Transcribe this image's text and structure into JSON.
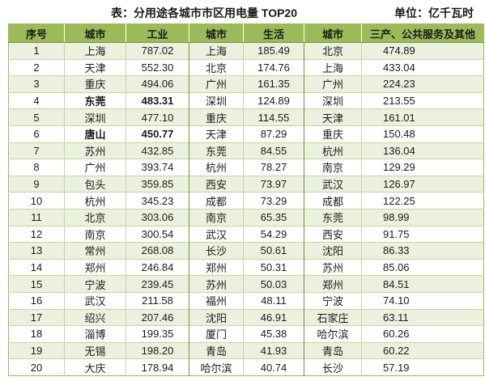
{
  "chart_data": {
    "type": "table",
    "title": "表：分用途各城市市区用电量 TOP20",
    "unit": "单位：亿千瓦时",
    "header": {
      "rank": "序号",
      "industry_city": "城市",
      "industry": "工业",
      "residential_city": "城市",
      "residential": "生活",
      "tertiary_city": "城市",
      "tertiary": "三产、公共服务及其他"
    },
    "rows": [
      {
        "rank": 1,
        "industry": {
          "city": "上海",
          "value": 787.02
        },
        "residential": {
          "city": "上海",
          "value": 185.49
        },
        "tertiary": {
          "city": "北京",
          "value": 474.89
        }
      },
      {
        "rank": 2,
        "industry": {
          "city": "天津",
          "value": 552.3
        },
        "residential": {
          "city": "北京",
          "value": 174.76
        },
        "tertiary": {
          "city": "上海",
          "value": 433.04
        }
      },
      {
        "rank": 3,
        "industry": {
          "city": "重庆",
          "value": 494.06
        },
        "residential": {
          "city": "广州",
          "value": 161.35
        },
        "tertiary": {
          "city": "广州",
          "value": 224.23
        }
      },
      {
        "rank": 4,
        "industry": {
          "city": "东莞",
          "value": 483.31,
          "emphasized": true
        },
        "residential": {
          "city": "深圳",
          "value": 124.89
        },
        "tertiary": {
          "city": "深圳",
          "value": 213.55
        }
      },
      {
        "rank": 5,
        "industry": {
          "city": "深圳",
          "value": 477.1
        },
        "residential": {
          "city": "重庆",
          "value": 114.55
        },
        "tertiary": {
          "city": "天津",
          "value": 161.01
        }
      },
      {
        "rank": 6,
        "industry": {
          "city": "唐山",
          "value": 450.77,
          "emphasized": true
        },
        "residential": {
          "city": "天津",
          "value": 87.29
        },
        "tertiary": {
          "city": "重庆",
          "value": 150.48
        }
      },
      {
        "rank": 7,
        "industry": {
          "city": "苏州",
          "value": 432.85
        },
        "residential": {
          "city": "东莞",
          "value": 84.55
        },
        "tertiary": {
          "city": "杭州",
          "value": 136.04
        }
      },
      {
        "rank": 8,
        "industry": {
          "city": "广州",
          "value": 393.74
        },
        "residential": {
          "city": "杭州",
          "value": 78.27
        },
        "tertiary": {
          "city": "南京",
          "value": 129.29
        }
      },
      {
        "rank": 9,
        "industry": {
          "city": "包头",
          "value": 359.85
        },
        "residential": {
          "city": "西安",
          "value": 73.97
        },
        "tertiary": {
          "city": "武汉",
          "value": 126.97
        }
      },
      {
        "rank": 10,
        "industry": {
          "city": "杭州",
          "value": 345.23
        },
        "residential": {
          "city": "成都",
          "value": 73.29
        },
        "tertiary": {
          "city": "成都",
          "value": 122.25
        }
      },
      {
        "rank": 11,
        "industry": {
          "city": "北京",
          "value": 303.06
        },
        "residential": {
          "city": "南京",
          "value": 65.35
        },
        "tertiary": {
          "city": "东莞",
          "value": 98.99
        }
      },
      {
        "rank": 12,
        "industry": {
          "city": "南京",
          "value": 300.54
        },
        "residential": {
          "city": "武汉",
          "value": 54.29
        },
        "tertiary": {
          "city": "西安",
          "value": 91.75
        }
      },
      {
        "rank": 13,
        "industry": {
          "city": "常州",
          "value": 268.08
        },
        "residential": {
          "city": "长沙",
          "value": 50.61
        },
        "tertiary": {
          "city": "沈阳",
          "value": 86.33
        }
      },
      {
        "rank": 14,
        "industry": {
          "city": "郑州",
          "value": 246.84
        },
        "residential": {
          "city": "郑州",
          "value": 50.31
        },
        "tertiary": {
          "city": "苏州",
          "value": 85.06
        }
      },
      {
        "rank": 15,
        "industry": {
          "city": "宁波",
          "value": 239.45
        },
        "residential": {
          "city": "苏州",
          "value": 50.03
        },
        "tertiary": {
          "city": "郑州",
          "value": 84.51
        }
      },
      {
        "rank": 16,
        "industry": {
          "city": "武汉",
          "value": 211.58
        },
        "residential": {
          "city": "福州",
          "value": 48.11
        },
        "tertiary": {
          "city": "宁波",
          "value": 74.1
        }
      },
      {
        "rank": 17,
        "industry": {
          "city": "绍兴",
          "value": 207.46
        },
        "residential": {
          "city": "沈阳",
          "value": 46.91
        },
        "tertiary": {
          "city": "石家庄",
          "value": 63.11
        }
      },
      {
        "rank": 18,
        "industry": {
          "city": "淄博",
          "value": 199.35
        },
        "residential": {
          "city": "厦门",
          "value": 45.38
        },
        "tertiary": {
          "city": "哈尔滨",
          "value": 60.26
        }
      },
      {
        "rank": 19,
        "industry": {
          "city": "无锡",
          "value": 198.2
        },
        "residential": {
          "city": "青岛",
          "value": 41.93
        },
        "tertiary": {
          "city": "青岛",
          "value": 60.22
        }
      },
      {
        "rank": 20,
        "industry": {
          "city": "大庆",
          "value": 178.94
        },
        "residential": {
          "city": "哈尔滨",
          "value": 40.74
        },
        "tertiary": {
          "city": "长沙",
          "value": 57.19
        }
      }
    ]
  },
  "colors": {
    "header_bg": "#9bbb59",
    "row_alt_bg": "#ebf1de",
    "row_bg": "#ffffff",
    "grid_line": "#c4d79b",
    "group_line": "#76923c",
    "text": "#1a1a1a"
  }
}
